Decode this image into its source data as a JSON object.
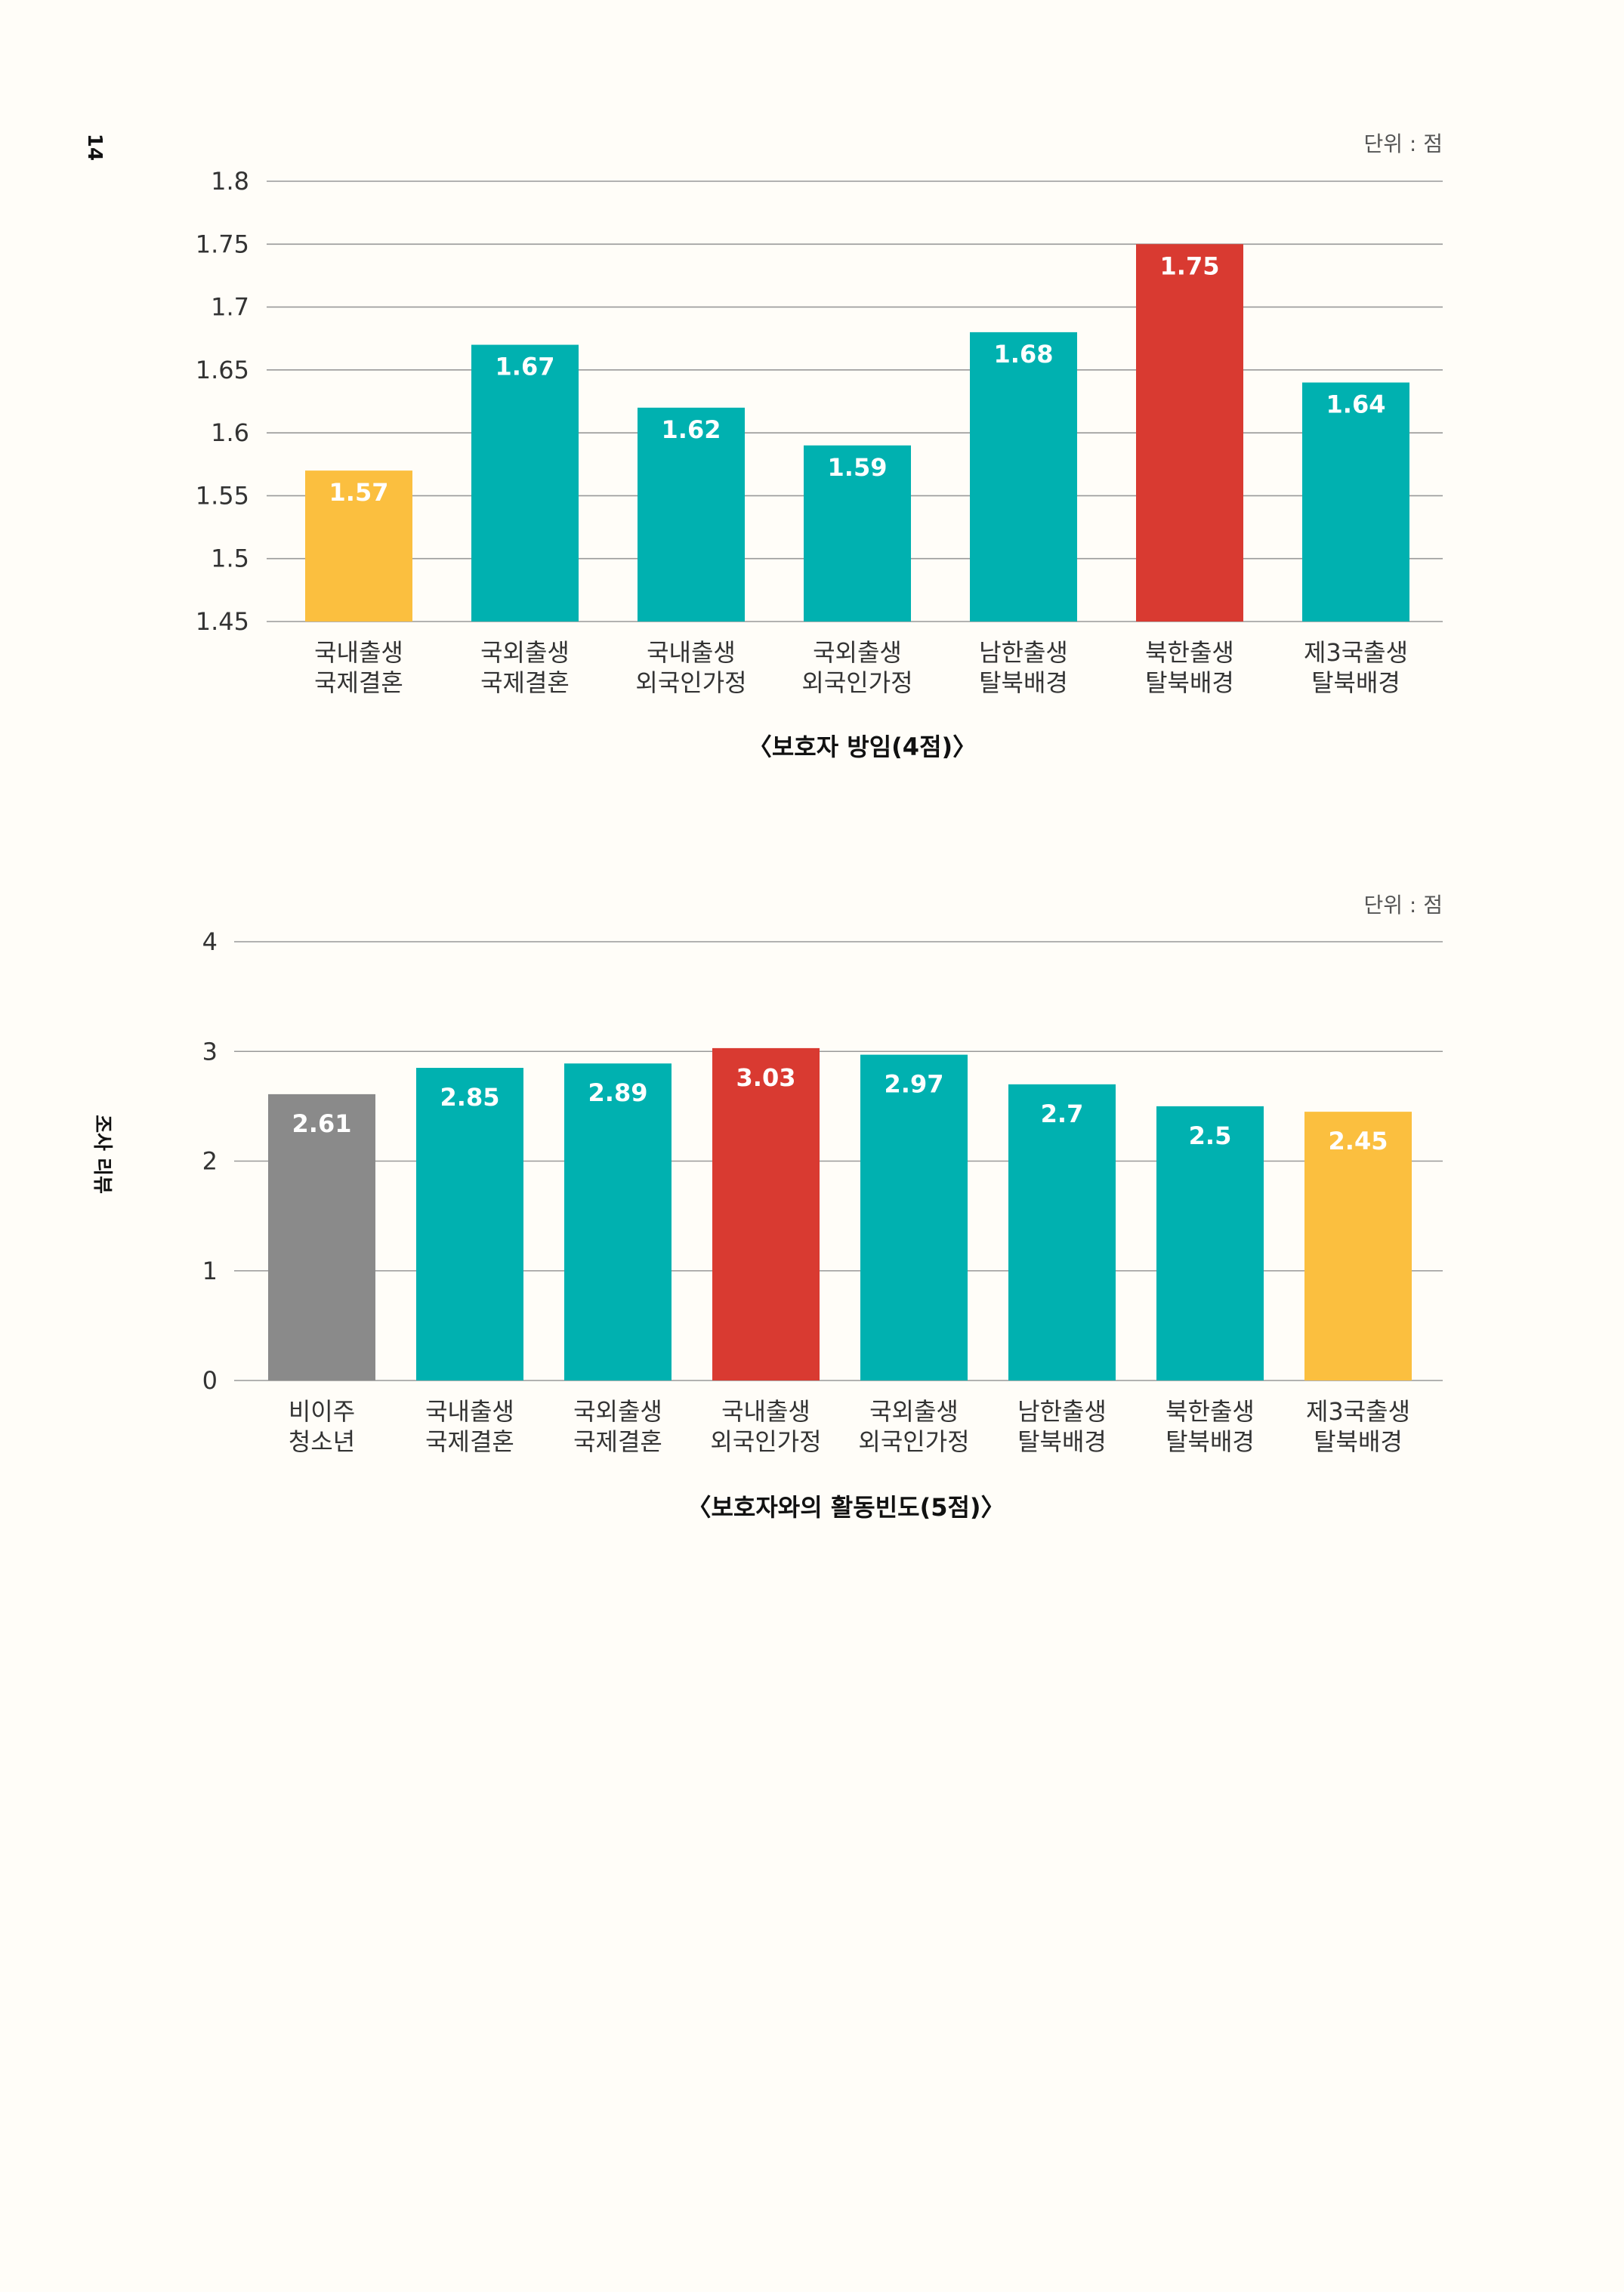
{
  "page": {
    "number": "14",
    "section_label": "조사 리뷰"
  },
  "chart_data": [
    {
      "type": "bar",
      "title": "〈보호자 방임(4점)〉",
      "unit": "단위 : 점",
      "categories": [
        [
          "국내출생",
          "국제결혼"
        ],
        [
          "국외출생",
          "국제결혼"
        ],
        [
          "국내출생",
          "외국인가정"
        ],
        [
          "국외출생",
          "외국인가정"
        ],
        [
          "남한출생",
          "탈북배경"
        ],
        [
          "북한출생",
          "탈북배경"
        ],
        [
          "제3국출생",
          "탈북배경"
        ]
      ],
      "values": [
        1.57,
        1.67,
        1.62,
        1.59,
        1.68,
        1.75,
        1.64
      ],
      "bar_colors": [
        "#fbbf3f",
        "#00b1b0",
        "#00b1b0",
        "#00b1b0",
        "#00b1b0",
        "#d93a31",
        "#00b1b0"
      ],
      "yticks": [
        "1.45",
        "1.5",
        "1.55",
        "1.6",
        "1.65",
        "1.7",
        "1.75",
        "1.8"
      ],
      "ylim": [
        1.45,
        1.8
      ],
      "grid": true
    },
    {
      "type": "bar",
      "title": "〈보호자와의 활동빈도(5점)〉",
      "unit": "단위 : 점",
      "categories": [
        [
          "비이주",
          "청소년"
        ],
        [
          "국내출생",
          "국제결혼"
        ],
        [
          "국외출생",
          "국제결혼"
        ],
        [
          "국내출생",
          "외국인가정"
        ],
        [
          "국외출생",
          "외국인가정"
        ],
        [
          "남한출생",
          "탈북배경"
        ],
        [
          "북한출생",
          "탈북배경"
        ],
        [
          "제3국출생",
          "탈북배경"
        ]
      ],
      "values": [
        2.61,
        2.85,
        2.89,
        3.03,
        2.97,
        2.7,
        2.5,
        2.45
      ],
      "bar_colors": [
        "#8a8a8a",
        "#00b1b0",
        "#00b1b0",
        "#d93a31",
        "#00b1b0",
        "#00b1b0",
        "#00b1b0",
        "#fbbf3f"
      ],
      "yticks": [
        "0",
        "1",
        "2",
        "3",
        "4"
      ],
      "ylim": [
        0,
        4
      ],
      "grid": true
    }
  ]
}
